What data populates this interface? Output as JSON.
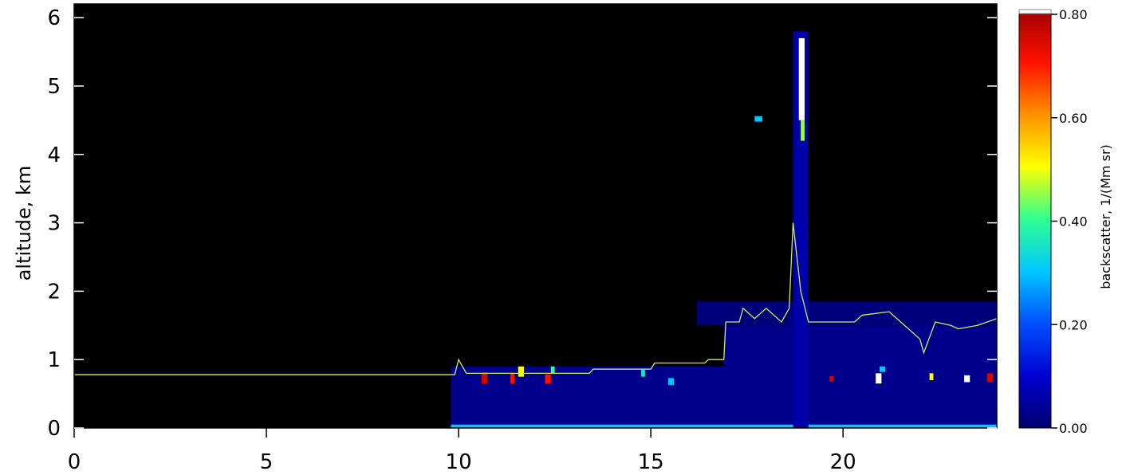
{
  "chart_data": {
    "type": "heatmap",
    "ylabel": "altitude, km",
    "colorbar_label": "backscatter, 1/(Mm sr)",
    "xlim": [
      0,
      24
    ],
    "xticks": [
      0,
      5,
      10,
      15,
      20
    ],
    "ylim": [
      0,
      6.2
    ],
    "yticks": [
      0,
      1,
      2,
      3,
      4,
      5,
      6
    ],
    "clim": [
      0,
      0.8
    ],
    "cticks": [
      {
        "value": 0,
        "label": "0.00"
      },
      {
        "value": 0.2,
        "label": "0.20"
      },
      {
        "value": 0.4,
        "label": "0.40"
      },
      {
        "value": 0.6,
        "label": "0.60"
      },
      {
        "value": 0.8,
        "label": "0.80"
      }
    ],
    "colormap": [
      "#000070",
      "#0000d0",
      "#0050ff",
      "#00c8ff",
      "#30ff90",
      "#ffff00",
      "#ff9000",
      "#ff1000",
      "#a00000"
    ],
    "over_color": "#ffffff",
    "background": "#000000",
    "cells": [
      {
        "x": [
          9.8,
          16.9
        ],
        "y": [
          0,
          0.9
        ],
        "value": 0.03
      },
      {
        "x": [
          16.9,
          24
        ],
        "y": [
          0,
          1.5
        ],
        "value": 0.03
      },
      {
        "x": [
          16.2,
          24
        ],
        "y": [
          1.5,
          1.85
        ],
        "value": 0.01
      },
      {
        "x": [
          9.8,
          24
        ],
        "y": [
          0,
          0.05
        ],
        "value": 0.3
      },
      {
        "x": [
          18.7,
          19.1
        ],
        "y": [
          0,
          5.8
        ],
        "value": 0.06
      },
      {
        "x": [
          18.85,
          19.0
        ],
        "y": [
          4.5,
          5.7
        ],
        "value": 0.9
      },
      {
        "x": [
          18.9,
          19.0
        ],
        "y": [
          4.2,
          4.5
        ],
        "value": 0.45
      },
      {
        "x": [
          10.6,
          10.75
        ],
        "y": [
          0.65,
          0.8
        ],
        "value": 0.75
      },
      {
        "x": [
          11.35,
          11.45
        ],
        "y": [
          0.65,
          0.8
        ],
        "value": 0.7
      },
      {
        "x": [
          11.55,
          11.7
        ],
        "y": [
          0.75,
          0.9
        ],
        "value": 0.5
      },
      {
        "x": [
          12.25,
          12.4
        ],
        "y": [
          0.65,
          0.78
        ],
        "value": 0.7
      },
      {
        "x": [
          12.4,
          12.5
        ],
        "y": [
          0.8,
          0.9
        ],
        "value": 0.4
      },
      {
        "x": [
          14.75,
          14.85
        ],
        "y": [
          0.75,
          0.85
        ],
        "value": 0.35
      },
      {
        "x": [
          15.45,
          15.6
        ],
        "y": [
          0.63,
          0.73
        ],
        "value": 0.3
      },
      {
        "x": [
          17.7,
          17.9
        ],
        "y": [
          4.48,
          4.56
        ],
        "value": 0.3
      },
      {
        "x": [
          19.65,
          19.75
        ],
        "y": [
          0.68,
          0.76
        ],
        "value": 0.75
      },
      {
        "x": [
          20.85,
          21.0
        ],
        "y": [
          0.65,
          0.8
        ],
        "value": 0.9
      },
      {
        "x": [
          20.95,
          21.1
        ],
        "y": [
          0.82,
          0.9
        ],
        "value": 0.3
      },
      {
        "x": [
          22.25,
          22.35
        ],
        "y": [
          0.7,
          0.8
        ],
        "value": 0.5
      },
      {
        "x": [
          23.15,
          23.3
        ],
        "y": [
          0.67,
          0.77
        ],
        "value": 0.9
      },
      {
        "x": [
          23.75,
          23.9
        ],
        "y": [
          0.67,
          0.8
        ],
        "value": 0.75
      }
    ],
    "series": [
      {
        "color": "#c8f060",
        "x": [
          0,
          9.9,
          10,
          10.2,
          13.4,
          13.5,
          15,
          15.1,
          16.4,
          16.5,
          16.9,
          16.95,
          17.3,
          17.4,
          17.7,
          18.0,
          18.4,
          18.6,
          18.7,
          18.9,
          19.1,
          20.3,
          20.5,
          21.2,
          21.6,
          22.0,
          22.1,
          22.4,
          22.8,
          23.0,
          23.5,
          24
        ],
        "values": [
          0.78,
          0.78,
          1.0,
          0.8,
          0.8,
          0.86,
          0.86,
          0.95,
          0.95,
          1.0,
          1.0,
          1.55,
          1.55,
          1.75,
          1.6,
          1.75,
          1.55,
          1.75,
          3.0,
          2.0,
          1.55,
          1.55,
          1.65,
          1.7,
          1.5,
          1.3,
          1.1,
          1.55,
          1.5,
          1.45,
          1.5,
          1.6
        ]
      }
    ]
  }
}
